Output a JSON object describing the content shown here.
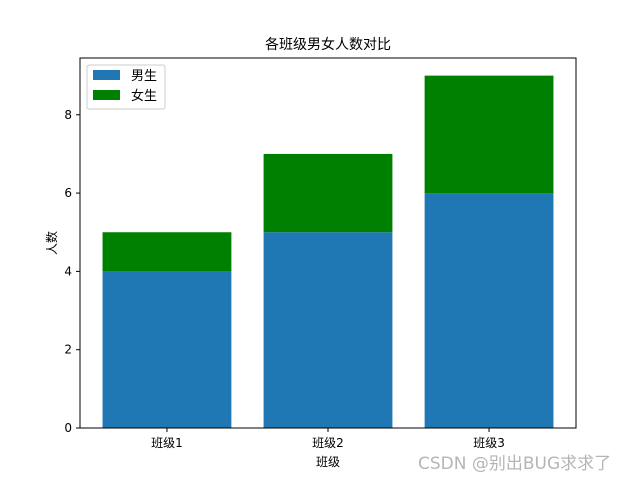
{
  "chart_data": {
    "type": "bar",
    "stacked": true,
    "title": "各班级男女人数对比",
    "xlabel": "班级",
    "ylabel": "人数",
    "categories": [
      "班级1",
      "班级2",
      "班级3"
    ],
    "series": [
      {
        "name": "男生",
        "values": [
          4,
          5,
          6
        ],
        "color": "#1f77b4"
      },
      {
        "name": "女生",
        "values": [
          1,
          2,
          3
        ],
        "color": "#008000"
      }
    ],
    "ylim": [
      0,
      9.45
    ],
    "yticks": [
      0,
      2,
      4,
      6,
      8
    ],
    "legend": "top-left",
    "grid": false
  },
  "watermark": "CSDN @别出BUG求求了"
}
